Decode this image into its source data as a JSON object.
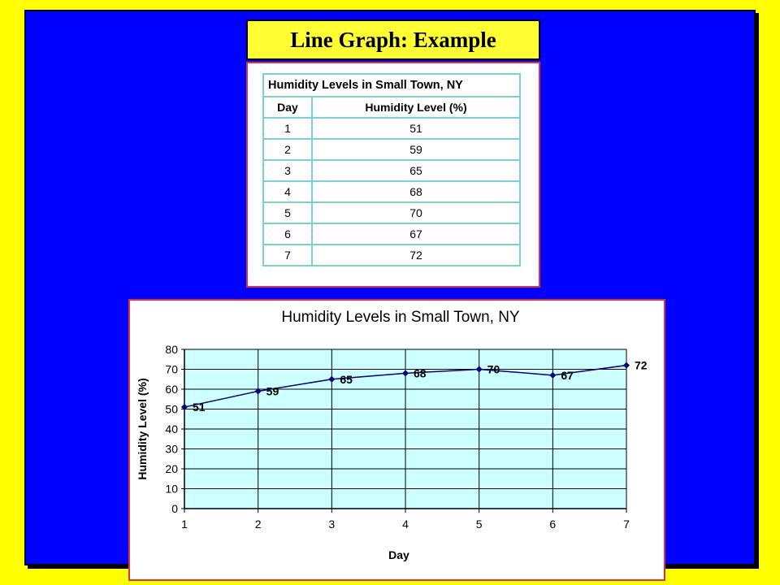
{
  "slide": {
    "title": "Line Graph: Example",
    "colors": {
      "background": "#ffff00",
      "slide": "#0000ff",
      "title_box": "#ffff33",
      "panel_border": "#e0303a",
      "plot_area": "#ccffff",
      "series": "#000080"
    }
  },
  "table": {
    "title": "Humidity Levels in Small Town, NY",
    "headers": [
      "Day",
      "Humidity Level (%)"
    ],
    "rows": [
      [
        "1",
        "51"
      ],
      [
        "2",
        "59"
      ],
      [
        "3",
        "65"
      ],
      [
        "4",
        "68"
      ],
      [
        "5",
        "70"
      ],
      [
        "6",
        "67"
      ],
      [
        "7",
        "72"
      ]
    ]
  },
  "chart_data": {
    "type": "line",
    "title": "Humidity Levels in Small Town, NY",
    "xlabel": "Day",
    "ylabel": "Humidity Level (%)",
    "x": [
      1,
      2,
      3,
      4,
      5,
      6,
      7
    ],
    "series": [
      {
        "values": [
          51,
          59,
          65,
          68,
          70,
          67,
          72
        ]
      }
    ],
    "xlim": [
      1,
      7
    ],
    "ylim": [
      0,
      80
    ],
    "yticks": [
      0,
      10,
      20,
      30,
      40,
      50,
      60,
      70,
      80
    ],
    "xticks": [
      1,
      2,
      3,
      4,
      5,
      6,
      7
    ],
    "data_labels": true,
    "grid": true,
    "legend": "none"
  }
}
